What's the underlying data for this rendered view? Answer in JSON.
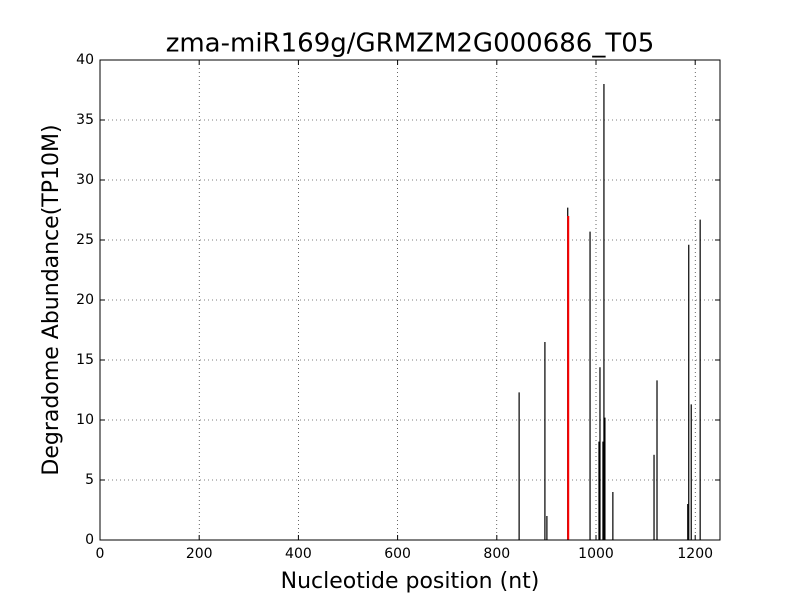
{
  "chart_data": {
    "type": "stem",
    "title": "zma-miR169g/GRMZM2G000686_T05",
    "xlabel": "Nucleotide position (nt)",
    "ylabel": "Degradome Abundance(TP10M)",
    "xlim": [
      0,
      1250
    ],
    "xticks": [
      0,
      200,
      400,
      600,
      800,
      1000,
      1200
    ],
    "ylim": [
      0,
      40
    ],
    "yticks": [
      0,
      5,
      10,
      15,
      20,
      25,
      30,
      35,
      40
    ],
    "grid": true,
    "series": [
      {
        "color": "#000000",
        "x": [
          845,
          897,
          901,
          943,
          988,
          1006,
          1008,
          1014,
          1016,
          1018,
          1034,
          1117,
          1123,
          1185,
          1187,
          1192,
          1210
        ],
        "values": [
          12.3,
          16.5,
          2.0,
          27.7,
          25.7,
          8.2,
          14.4,
          8.2,
          38.0,
          10.2,
          4.0,
          7.1,
          13.3,
          3.0,
          24.6,
          11.3,
          26.7
        ]
      },
      {
        "color": "#ff0000",
        "x": [
          944
        ],
        "values": [
          27.0
        ]
      }
    ]
  }
}
